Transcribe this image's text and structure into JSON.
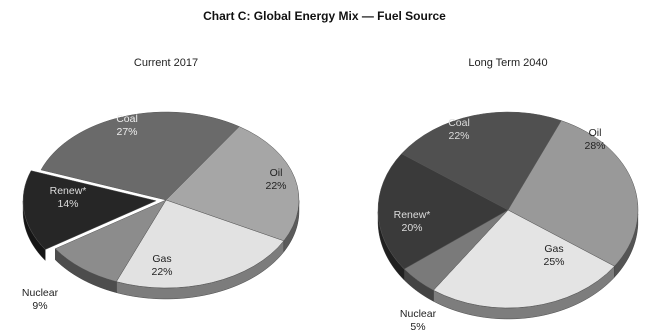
{
  "title": "Chart C: Global Energy Mix — Fuel Source",
  "chart_data": [
    {
      "type": "pie",
      "title": "Current 2017",
      "slices": [
        {
          "name": "Coal",
          "label": "Coal",
          "value_label": "27%",
          "value": 27,
          "color": "#6a6a6a",
          "text_color": "#eeeeee"
        },
        {
          "name": "Oil",
          "label": "Oil",
          "value_label": "22%",
          "value": 22,
          "color": "#a6a6a6",
          "text_color": "#222222"
        },
        {
          "name": "Gas",
          "label": "Gas",
          "value_label": "22%",
          "value": 22,
          "color": "#e2e2e2",
          "text_color": "#222222"
        },
        {
          "name": "Nuclear",
          "label": "Nuclear",
          "value_label": "9%",
          "value": 9,
          "color": "#8c8c8c",
          "text_color": "#222222"
        },
        {
          "name": "Renew*",
          "label": "Renew*",
          "value_label": "14%",
          "value": 14,
          "color": "#262626",
          "text_color": "#dddddd"
        }
      ]
    },
    {
      "type": "pie",
      "title": "Long Term 2040",
      "slices": [
        {
          "name": "Coal",
          "label": "Coal",
          "value_label": "22%",
          "value": 22,
          "color": "#505050",
          "text_color": "#dddddd"
        },
        {
          "name": "Oil",
          "label": "Oil",
          "value_label": "28%",
          "value": 28,
          "color": "#999999",
          "text_color": "#222222"
        },
        {
          "name": "Gas",
          "label": "Gas",
          "value_label": "25%",
          "value": 25,
          "color": "#e4e4e4",
          "text_color": "#222222"
        },
        {
          "name": "Nuclear",
          "label": "Nuclear",
          "value_label": "5%",
          "value": 5,
          "color": "#7a7a7a",
          "text_color": "#222222"
        },
        {
          "name": "Renew*",
          "label": "Renew*",
          "value_label": "20%",
          "value": 20,
          "color": "#3a3a3a",
          "text_color": "#dddddd"
        }
      ]
    }
  ]
}
